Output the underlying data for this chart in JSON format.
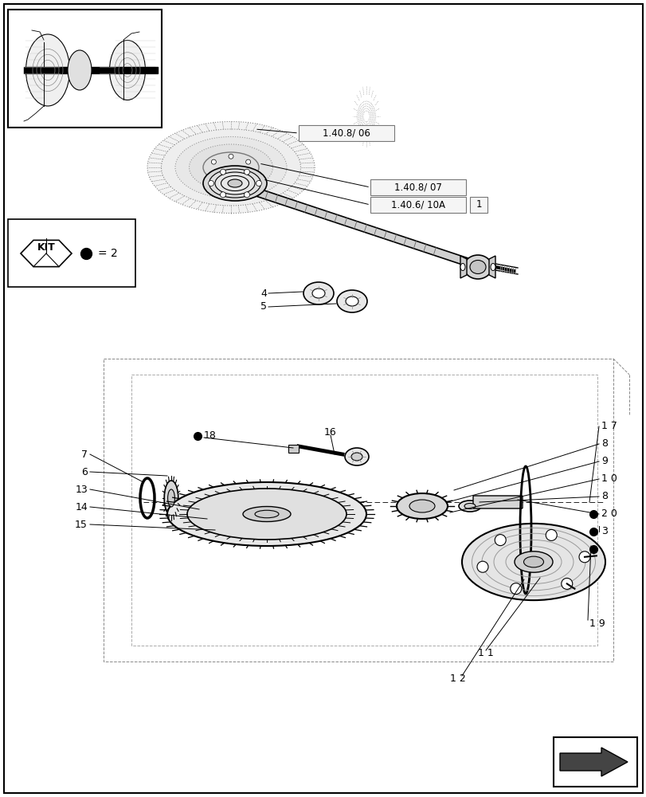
{
  "bg_color": "#ffffff",
  "labels": {
    "ref1": "1.40.8/ 06",
    "ref2": "1.40.8/ 07",
    "ref3": "1.40.6/ 10A",
    "ref3b": "1",
    "kit_label": "KIT",
    "kit_eq": "= 2"
  }
}
